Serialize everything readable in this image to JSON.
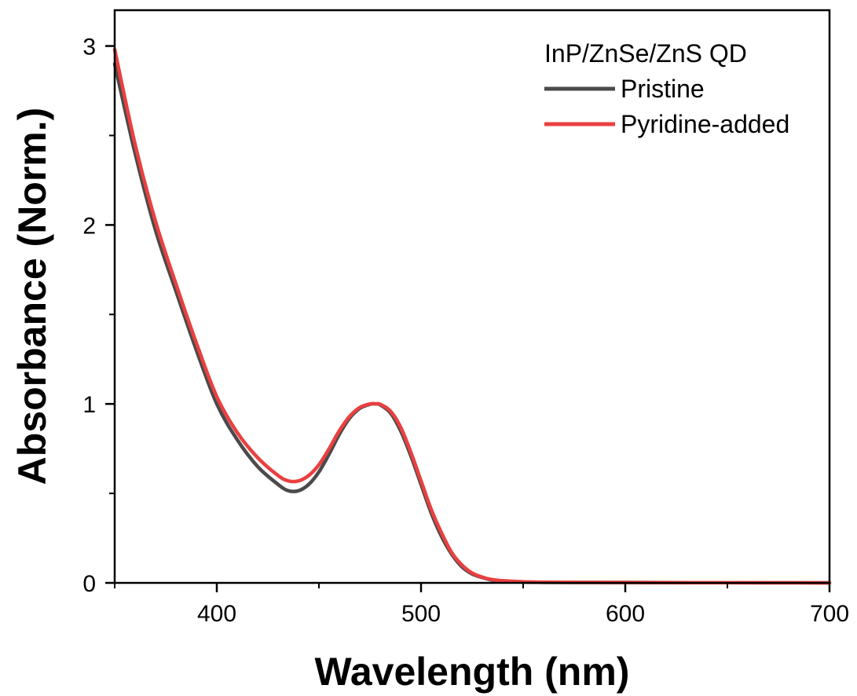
{
  "chart_data": {
    "type": "line",
    "title": "",
    "xlabel": "Wavelength (nm)",
    "ylabel": "Absorbance (Norm.)",
    "xlim": [
      350,
      700
    ],
    "ylim": [
      0,
      3.2
    ],
    "x_ticks": [
      400,
      500,
      600,
      700
    ],
    "x_tick_labels": [
      "400",
      "500",
      "600",
      "700"
    ],
    "x_minor_ticks": [
      350,
      450,
      550,
      650
    ],
    "y_ticks": [
      0,
      1,
      2,
      3
    ],
    "y_tick_labels": [
      "0",
      "1",
      "2",
      "3"
    ],
    "y_minor_ticks": [
      0.5,
      1.5,
      2.5
    ],
    "grid": false,
    "legend": {
      "title": "InP/ZnSe/ZnS QD",
      "placement": "top-right",
      "entries": [
        "Pristine",
        "Pyridine-added"
      ]
    },
    "series": [
      {
        "name": "Pristine",
        "color": "#4a4a4a",
        "x": [
          350,
          360,
          370,
          380,
          390,
          400,
          410,
          420,
          430,
          435,
          440,
          445,
          450,
          455,
          460,
          465,
          470,
          475,
          478,
          480,
          485,
          490,
          495,
          500,
          505,
          510,
          515,
          520,
          525,
          530,
          535,
          540,
          550,
          560,
          580,
          600,
          650,
          700
        ],
        "y": [
          2.9,
          2.4,
          1.97,
          1.63,
          1.3,
          1.0,
          0.8,
          0.65,
          0.55,
          0.515,
          0.515,
          0.55,
          0.62,
          0.72,
          0.83,
          0.92,
          0.975,
          0.998,
          1.0,
          0.995,
          0.95,
          0.85,
          0.71,
          0.55,
          0.39,
          0.26,
          0.16,
          0.09,
          0.05,
          0.03,
          0.015,
          0.01,
          0.005,
          0.003,
          0.002,
          0.002,
          0.001,
          0.0
        ]
      },
      {
        "name": "Pyridine-added",
        "color": "#ea4040",
        "x": [
          350,
          360,
          370,
          380,
          390,
          400,
          410,
          420,
          430,
          435,
          440,
          445,
          450,
          455,
          460,
          465,
          470,
          475,
          478,
          480,
          485,
          490,
          495,
          500,
          505,
          510,
          515,
          520,
          525,
          530,
          535,
          540,
          550,
          560,
          580,
          600,
          650,
          700
        ],
        "y": [
          2.98,
          2.45,
          2.02,
          1.67,
          1.34,
          1.04,
          0.84,
          0.7,
          0.6,
          0.57,
          0.57,
          0.6,
          0.66,
          0.75,
          0.85,
          0.93,
          0.98,
          1.0,
          1.0,
          0.998,
          0.96,
          0.87,
          0.73,
          0.57,
          0.41,
          0.28,
          0.17,
          0.1,
          0.055,
          0.032,
          0.018,
          0.012,
          0.006,
          0.004,
          0.003,
          0.002,
          0.001,
          0.0
        ]
      }
    ]
  }
}
